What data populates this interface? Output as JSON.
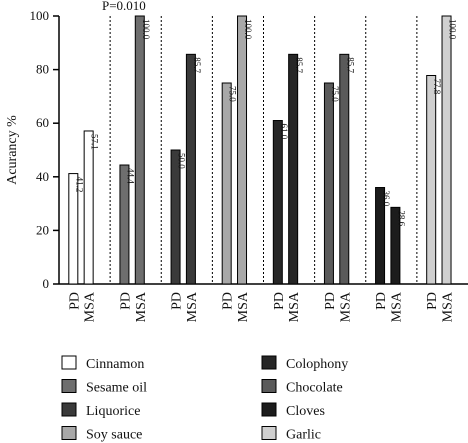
{
  "chart_data": {
    "type": "bar",
    "ylabel": "Acurancy %",
    "ylim": [
      0,
      100
    ],
    "yticks": [
      0,
      20,
      40,
      60,
      80,
      100
    ],
    "annotation": "P=0.010",
    "x_labels": [
      "PD",
      "MSA"
    ],
    "series": [
      {
        "name": "Cinnamon",
        "color": "#ffffff",
        "values": [
          41.2,
          57.1
        ],
        "labels": [
          "41.2",
          "57.1"
        ]
      },
      {
        "name": "Sesame oil",
        "color": "#6e6e6e",
        "values": [
          44.4,
          100.0
        ],
        "labels": [
          "44.4",
          "100.0"
        ]
      },
      {
        "name": "Liquorice",
        "color": "#3a3a3a",
        "values": [
          50.0,
          85.7
        ],
        "labels": [
          "50.0",
          "85.7"
        ]
      },
      {
        "name": "Soy sauce",
        "color": "#a8a8a8",
        "values": [
          75.0,
          100.0
        ],
        "labels": [
          "75.0",
          "100.0"
        ]
      },
      {
        "name": "Colophony",
        "color": "#262626",
        "values": [
          61.0,
          85.7
        ],
        "labels": [
          "61.0",
          "85.7"
        ]
      },
      {
        "name": "Chocolate",
        "color": "#5a5a5a",
        "values": [
          75.0,
          85.7
        ],
        "labels": [
          "75.0",
          "85.7"
        ]
      },
      {
        "name": "Cloves",
        "color": "#1c1c1c",
        "values": [
          36.0,
          28.6
        ],
        "labels": [
          "36.0",
          "28.6"
        ]
      },
      {
        "name": "Garlic",
        "color": "#cfcfcf",
        "values": [
          77.8,
          100.0
        ],
        "labels": [
          "77.8",
          "100.0"
        ]
      }
    ],
    "legend": {
      "columns": 2
    }
  }
}
